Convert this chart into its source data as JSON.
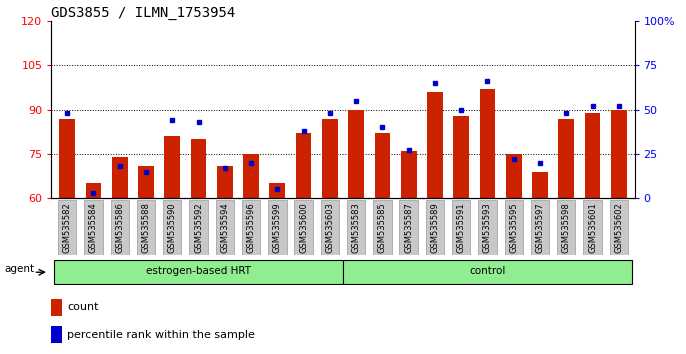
{
  "title": "GDS3855 / ILMN_1753954",
  "samples": [
    "GSM535582",
    "GSM535584",
    "GSM535586",
    "GSM535588",
    "GSM535590",
    "GSM535592",
    "GSM535594",
    "GSM535596",
    "GSM535599",
    "GSM535600",
    "GSM535603",
    "GSM535583",
    "GSM535585",
    "GSM535587",
    "GSM535589",
    "GSM535591",
    "GSM535593",
    "GSM535595",
    "GSM535597",
    "GSM535598",
    "GSM535601",
    "GSM535602"
  ],
  "counts": [
    87,
    65,
    74,
    71,
    81,
    80,
    71,
    75,
    65,
    82,
    87,
    90,
    82,
    76,
    96,
    88,
    97,
    75,
    69,
    87,
    89,
    90
  ],
  "percentile_ranks": [
    48,
    3,
    18,
    15,
    44,
    43,
    17,
    20,
    5,
    38,
    48,
    55,
    40,
    27,
    65,
    50,
    66,
    22,
    20,
    48,
    52,
    52
  ],
  "group1_label": "estrogen-based HRT",
  "group2_label": "control",
  "group1_count": 11,
  "group2_count": 11,
  "ylim_left": [
    60,
    120
  ],
  "ylim_right": [
    0,
    100
  ],
  "yticks_left": [
    60,
    75,
    90,
    105,
    120
  ],
  "yticks_right": [
    0,
    25,
    50,
    75,
    100
  ],
  "grid_lines": [
    75,
    90,
    105
  ],
  "bar_color": "#CC2200",
  "dot_color": "#0000CC",
  "group_bg_color": "#90EE90",
  "tick_bg_color": "#C8C8C8",
  "title_fontsize": 10,
  "tick_fontsize": 6,
  "legend_fontsize": 8,
  "agent_label": "agent"
}
